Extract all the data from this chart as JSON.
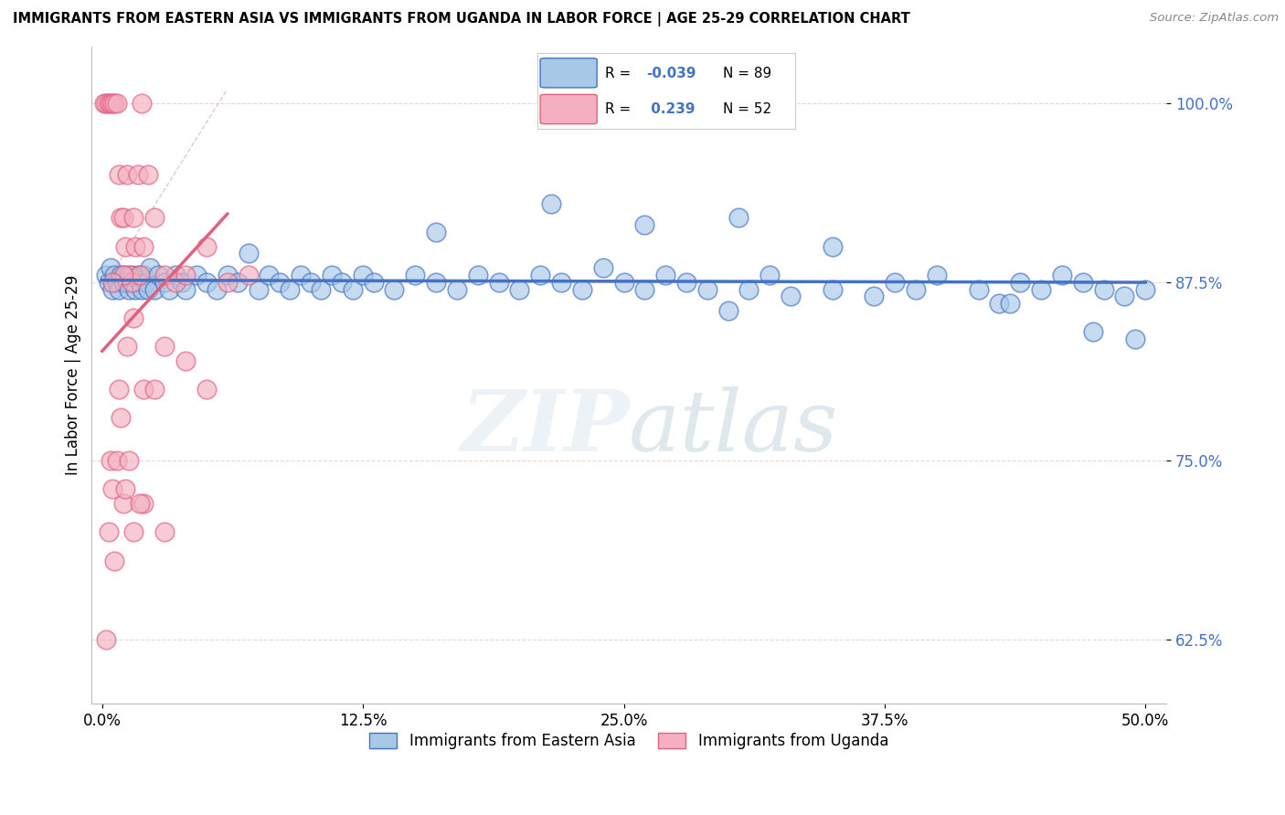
{
  "title": "IMMIGRANTS FROM EASTERN ASIA VS IMMIGRANTS FROM UGANDA IN LABOR FORCE | AGE 25-29 CORRELATION CHART",
  "source": "Source: ZipAtlas.com",
  "ylabel": "In Labor Force | Age 25-29",
  "yticks": [
    62.5,
    75.0,
    87.5,
    100.0
  ],
  "xticks": [
    0.0,
    12.5,
    25.0,
    37.5,
    50.0
  ],
  "xlim": [
    -0.5,
    51.0
  ],
  "ylim": [
    58.0,
    104.0
  ],
  "blue_name": "Immigrants from Eastern Asia",
  "pink_name": "Immigrants from Uganda",
  "blue_color": "#a8c8e8",
  "blue_edge": "#4472c4",
  "pink_color": "#f4b0c0",
  "pink_edge": "#e06080",
  "blue_R": -0.039,
  "blue_N": 89,
  "pink_R": 0.239,
  "pink_N": 52,
  "background_color": "#ffffff",
  "watermark_text": "ZIPatlas",
  "blue_x": [
    0.2,
    0.3,
    0.4,
    0.5,
    0.6,
    0.7,
    0.8,
    0.9,
    1.0,
    1.1,
    1.2,
    1.3,
    1.4,
    1.5,
    1.6,
    1.7,
    1.8,
    1.9,
    2.0,
    2.1,
    2.2,
    2.3,
    2.5,
    2.7,
    3.0,
    3.2,
    3.5,
    3.8,
    4.0,
    4.5,
    5.0,
    5.5,
    6.0,
    6.5,
    7.0,
    7.5,
    8.0,
    8.5,
    9.0,
    9.5,
    10.0,
    10.5,
    11.0,
    11.5,
    12.0,
    12.5,
    13.0,
    14.0,
    15.0,
    16.0,
    17.0,
    18.0,
    19.0,
    20.0,
    21.0,
    22.0,
    23.0,
    24.0,
    25.0,
    26.0,
    27.0,
    28.0,
    29.0,
    30.0,
    31.0,
    32.0,
    33.0,
    35.0,
    37.0,
    39.0,
    40.0,
    42.0,
    43.0,
    44.0,
    45.0,
    46.0,
    47.0,
    48.0,
    49.0,
    50.0,
    49.5,
    47.5,
    43.5,
    38.0,
    35.0,
    30.5,
    26.0,
    21.5,
    16.0
  ],
  "blue_y": [
    88.0,
    87.5,
    88.5,
    87.0,
    88.0,
    87.5,
    87.0,
    88.0,
    87.5,
    88.0,
    87.5,
    87.0,
    88.0,
    87.5,
    87.0,
    88.0,
    87.5,
    87.0,
    88.0,
    87.5,
    87.0,
    88.5,
    87.0,
    88.0,
    87.5,
    87.0,
    88.0,
    87.5,
    87.0,
    88.0,
    87.5,
    87.0,
    88.0,
    87.5,
    89.5,
    87.0,
    88.0,
    87.5,
    87.0,
    88.0,
    87.5,
    87.0,
    88.0,
    87.5,
    87.0,
    88.0,
    87.5,
    87.0,
    88.0,
    87.5,
    87.0,
    88.0,
    87.5,
    87.0,
    88.0,
    87.5,
    87.0,
    88.5,
    87.5,
    87.0,
    88.0,
    87.5,
    87.0,
    85.5,
    87.0,
    88.0,
    86.5,
    87.0,
    86.5,
    87.0,
    88.0,
    87.0,
    86.0,
    87.5,
    87.0,
    88.0,
    87.5,
    87.0,
    86.5,
    87.0,
    83.5,
    84.0,
    86.0,
    87.5,
    90.0,
    92.0,
    91.5,
    93.0,
    91.0
  ],
  "pink_x": [
    0.1,
    0.2,
    0.3,
    0.4,
    0.5,
    0.6,
    0.7,
    0.8,
    0.9,
    1.0,
    1.1,
    1.2,
    1.3,
    1.4,
    1.5,
    1.6,
    1.7,
    1.8,
    1.9,
    2.0,
    2.2,
    2.5,
    3.0,
    3.5,
    4.0,
    5.0,
    6.0,
    7.0,
    2.0,
    1.5,
    1.0,
    0.5,
    0.8,
    1.2,
    2.5,
    3.0,
    4.0,
    5.0,
    1.0,
    0.5,
    0.3,
    0.6,
    0.4,
    1.5,
    2.0,
    3.0,
    0.7,
    1.1,
    0.9,
    1.3,
    1.8,
    0.2
  ],
  "pink_y": [
    100.0,
    100.0,
    100.0,
    100.0,
    100.0,
    100.0,
    100.0,
    95.0,
    92.0,
    92.0,
    90.0,
    95.0,
    88.0,
    87.5,
    92.0,
    90.0,
    95.0,
    88.0,
    100.0,
    90.0,
    95.0,
    92.0,
    88.0,
    87.5,
    88.0,
    90.0,
    87.5,
    88.0,
    80.0,
    85.0,
    88.0,
    87.5,
    80.0,
    83.0,
    80.0,
    83.0,
    82.0,
    80.0,
    72.0,
    73.0,
    70.0,
    68.0,
    75.0,
    70.0,
    72.0,
    70.0,
    75.0,
    73.0,
    78.0,
    75.0,
    72.0,
    62.5
  ]
}
